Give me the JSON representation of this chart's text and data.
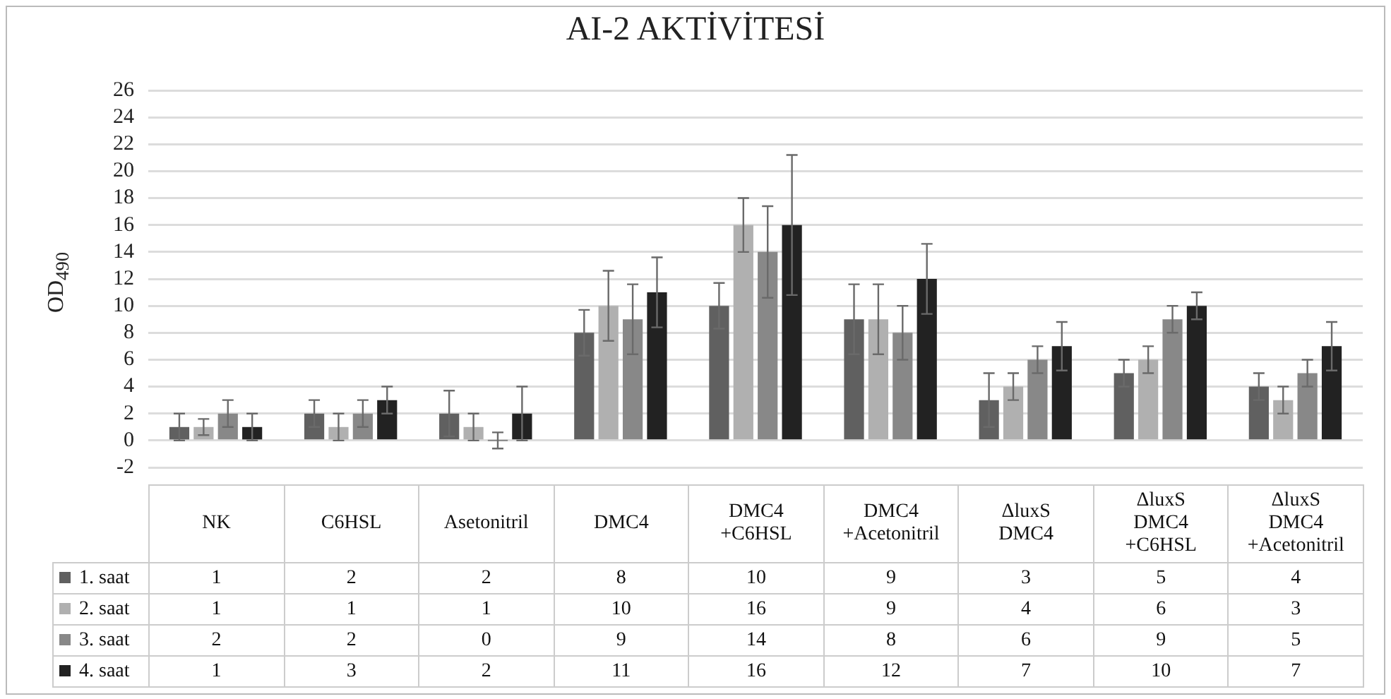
{
  "chart_data": {
    "type": "bar",
    "title": "AI-2 AKTİVİTESİ",
    "ylabel": "OD$_{490}$",
    "categories": [
      "NK",
      "C6HSL",
      "Asetonitril",
      "DMC4",
      "DMC4\n+C6HSL",
      "DMC4\n+Acetonitril",
      "ΔluxS\nDMC4",
      "ΔluxS\nDMC4\n+C6HSL",
      "ΔluxS\nDMC4\n+Acetonitril"
    ],
    "series": [
      {
        "name": "1. saat",
        "color": "#606060",
        "values": [
          1,
          2,
          2,
          8,
          10,
          9,
          3,
          5,
          4
        ],
        "errors": [
          1,
          1,
          1.7,
          1.7,
          1.7,
          2.6,
          2,
          1,
          1
        ]
      },
      {
        "name": "2. saat",
        "color": "#b0b0b0",
        "values": [
          1,
          1,
          1,
          10,
          16,
          9,
          4,
          6,
          3
        ],
        "errors": [
          0.6,
          1,
          1,
          2.6,
          2,
          2.6,
          1,
          1,
          1
        ]
      },
      {
        "name": "3. saat",
        "color": "#888888",
        "values": [
          2,
          2,
          0,
          9,
          14,
          8,
          6,
          9,
          5
        ],
        "errors": [
          1,
          1,
          0.6,
          2.6,
          3.4,
          2,
          1,
          1,
          1
        ]
      },
      {
        "name": "4. saat",
        "color": "#222222",
        "values": [
          1,
          3,
          2,
          11,
          16,
          12,
          7,
          10,
          7
        ],
        "errors": [
          1,
          1,
          2,
          2.6,
          5.2,
          2.6,
          1.8,
          1,
          1.8
        ]
      }
    ],
    "ylim": [
      -2,
      26
    ],
    "yticks": [
      -2,
      0,
      2,
      4,
      6,
      8,
      10,
      12,
      14,
      16,
      18,
      20,
      22,
      24,
      26
    ],
    "grid": "y",
    "legend": "bottom",
    "data_labels": true
  }
}
